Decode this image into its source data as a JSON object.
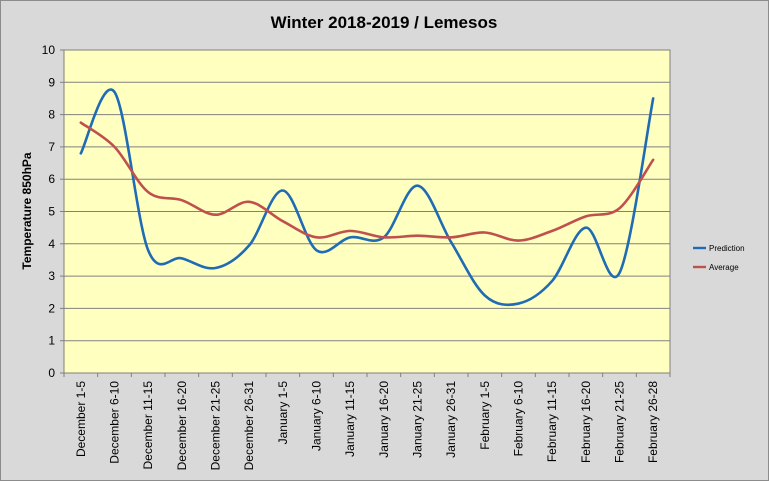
{
  "chart_data": {
    "type": "line",
    "title": "Winter 2018-2019 / Lemesos",
    "xlabel": "",
    "ylabel": "Temperature 850hPa",
    "ylim": [
      0,
      10
    ],
    "yticks": [
      0,
      1,
      2,
      3,
      4,
      5,
      6,
      7,
      8,
      9,
      10
    ],
    "grid": "horizontal",
    "legend_position": "right",
    "plot_background": "#ffffc0",
    "categories": [
      "December 1-5",
      "December 6-10",
      "December 11-15",
      "December 16-20",
      "December 21-25",
      "December 26-31",
      "January 1-5",
      "January 6-10",
      "January 11-15",
      "January 16-20",
      "January 21-25",
      "January 26-31",
      "February 1-5",
      "February 6-10",
      "February 11-15",
      "February 16-20",
      "February 21-25",
      "February 26-28"
    ],
    "series": [
      {
        "name": "Prediction",
        "color": "#1f6bb5",
        "values": [
          6.8,
          8.7,
          3.8,
          3.55,
          3.25,
          3.95,
          5.65,
          3.8,
          4.2,
          4.2,
          5.8,
          4.05,
          2.4,
          2.15,
          2.85,
          4.5,
          3.1,
          8.5
        ]
      },
      {
        "name": "Average",
        "color": "#c0504d",
        "values": [
          7.75,
          7.0,
          5.6,
          5.35,
          4.9,
          5.3,
          4.7,
          4.2,
          4.4,
          4.2,
          4.25,
          4.2,
          4.35,
          4.1,
          4.4,
          4.85,
          5.1,
          6.6
        ]
      }
    ]
  }
}
